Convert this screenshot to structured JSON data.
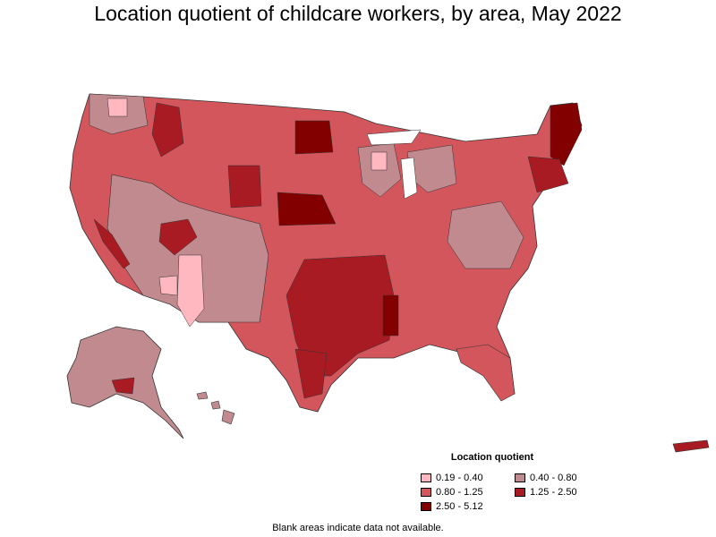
{
  "title": "Location quotient of childcare workers, by area, May 2022",
  "legend": {
    "title": "Location quotient",
    "items": [
      {
        "label": "0.19 - 0.40",
        "color": "#ffb7c0"
      },
      {
        "label": "0.40 - 0.80",
        "color": "#c08a8f"
      },
      {
        "label": "0.80 - 1.25",
        "color": "#d2565c"
      },
      {
        "label": "1.25 - 2.50",
        "color": "#a81b22"
      },
      {
        "label": "2.50 - 5.12",
        "color": "#820000"
      }
    ]
  },
  "footnote": "Blank areas indicate data not available."
}
